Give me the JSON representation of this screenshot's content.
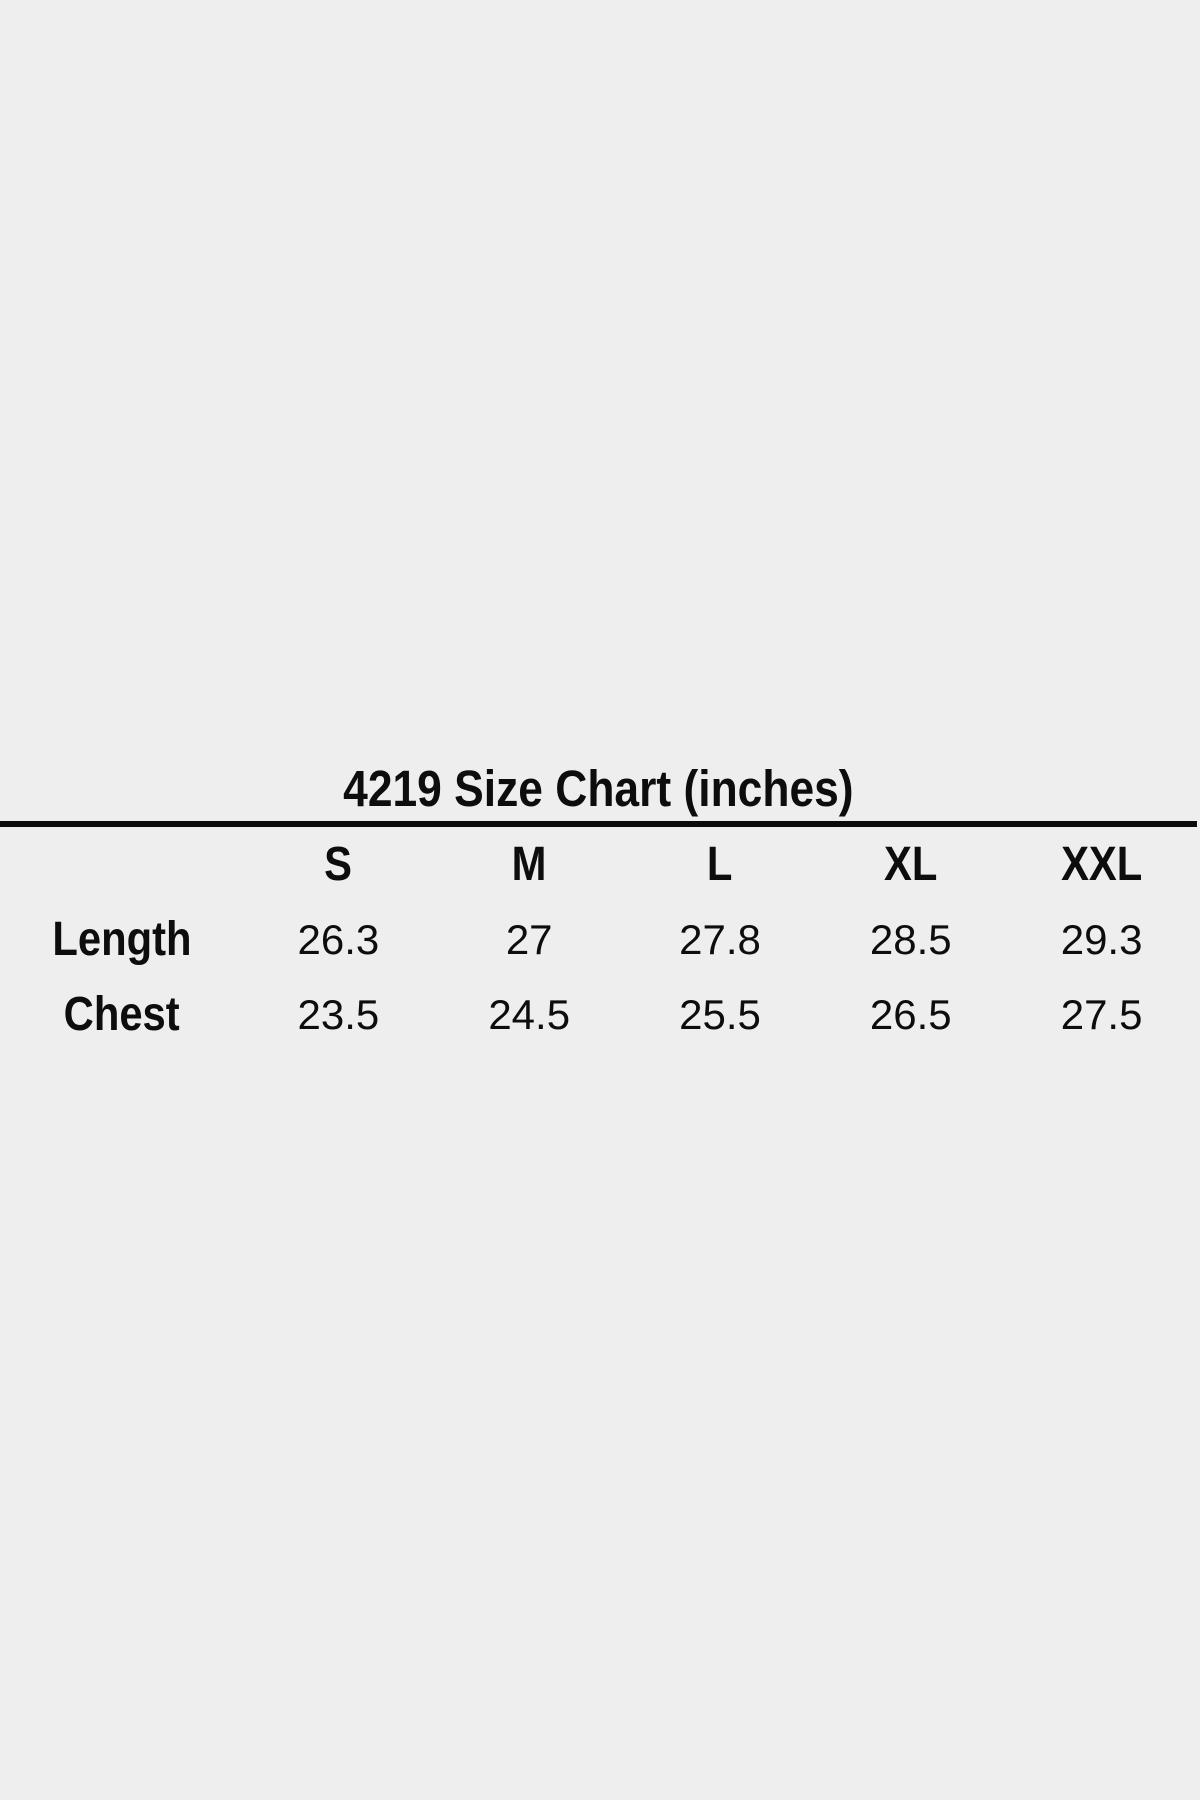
{
  "page": {
    "background": "#eeeeee",
    "text_color": "#0d0d0d",
    "divider_color": "#0b0b0b"
  },
  "chart_data": {
    "type": "table",
    "title": "4219 Size Chart (inches)",
    "units": "inches",
    "columns": [
      "S",
      "M",
      "L",
      "XL",
      "XXL"
    ],
    "rows": [
      {
        "label": "Length",
        "values": [
          "26.3",
          "27",
          "27.8",
          "28.5",
          "29.3"
        ]
      },
      {
        "label": "Chest",
        "values": [
          "23.5",
          "24.5",
          "25.5",
          "26.5",
          "27.5"
        ]
      }
    ]
  }
}
